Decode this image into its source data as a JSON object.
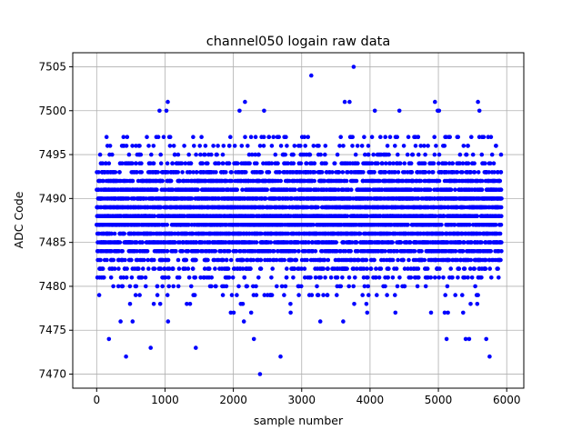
{
  "chart_data": {
    "type": "scatter",
    "title": "channel050 logain raw data",
    "xlabel": "sample number",
    "ylabel": "ADC Code",
    "xlim": [
      -350,
      6250
    ],
    "ylim": [
      7468.4,
      7506.6
    ],
    "xticks": [
      0,
      1000,
      2000,
      3000,
      4000,
      5000,
      6000
    ],
    "yticks": [
      7470,
      7475,
      7480,
      7485,
      7490,
      7495,
      7500,
      7505
    ],
    "grid": true,
    "marker_color": "#0000ff",
    "series": [
      {
        "n_samples": 5925,
        "y_center": 7488,
        "y_band": [
          7478,
          7493
        ],
        "outliers": [
          {
            "x": 3140,
            "y": 7504
          },
          {
            "x": 3760,
            "y": 7505
          },
          {
            "x": 2390,
            "y": 7470
          },
          {
            "x": 430,
            "y": 7472
          },
          {
            "x": 2690,
            "y": 7472
          },
          {
            "x": 5750,
            "y": 7472
          },
          {
            "x": 790,
            "y": 7473
          },
          {
            "x": 1450,
            "y": 7473
          },
          {
            "x": 1040,
            "y": 7501
          },
          {
            "x": 2170,
            "y": 7501
          },
          {
            "x": 3630,
            "y": 7501
          },
          {
            "x": 3700,
            "y": 7501
          },
          {
            "x": 4950,
            "y": 7501
          },
          {
            "x": 5580,
            "y": 7501
          },
          {
            "x": 180,
            "y": 7474
          },
          {
            "x": 2300,
            "y": 7474
          },
          {
            "x": 5120,
            "y": 7474
          },
          {
            "x": 5400,
            "y": 7474
          },
          {
            "x": 5450,
            "y": 7474
          },
          {
            "x": 5700,
            "y": 7474
          },
          {
            "x": 920,
            "y": 7500
          },
          {
            "x": 1020,
            "y": 7500
          },
          {
            "x": 2090,
            "y": 7500
          },
          {
            "x": 2450,
            "y": 7500
          },
          {
            "x": 4070,
            "y": 7500
          },
          {
            "x": 4430,
            "y": 7500
          },
          {
            "x": 4990,
            "y": 7500
          },
          {
            "x": 5010,
            "y": 7500
          },
          {
            "x": 5600,
            "y": 7500
          }
        ]
      }
    ]
  }
}
